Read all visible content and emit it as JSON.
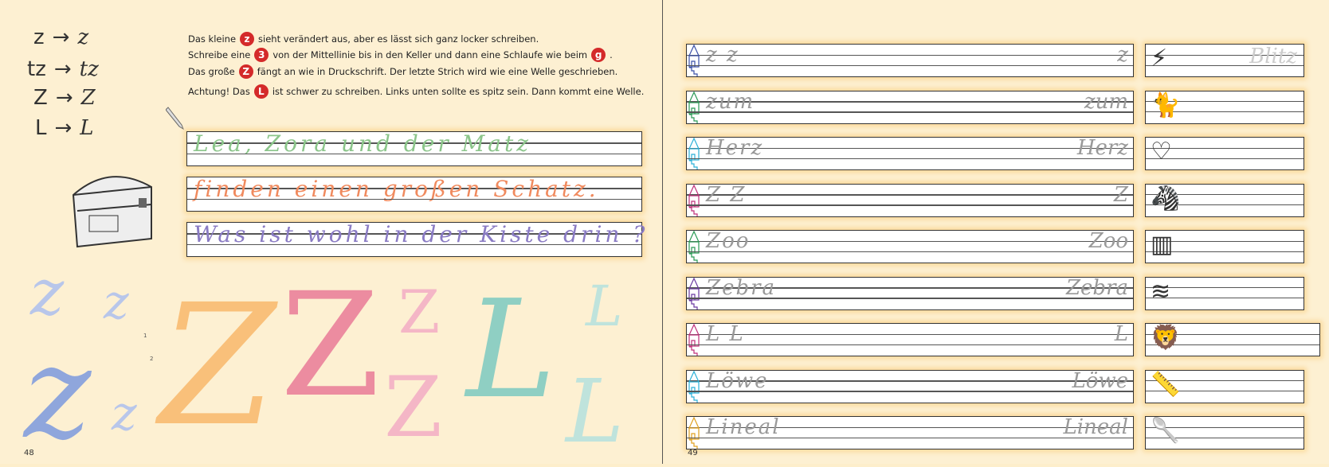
{
  "left_page": {
    "page_number": "48",
    "letter_pairs": [
      {
        "print": "z",
        "cursive": "z"
      },
      {
        "print": "tz",
        "cursive": "tz"
      },
      {
        "print": "Z",
        "cursive": "Z"
      },
      {
        "print": "L",
        "cursive": "L"
      }
    ],
    "arrow": "→",
    "instructions": [
      {
        "before": "Das kleine",
        "badge": "z",
        "after": "sieht verändert aus, aber es lässt sich ganz locker schreiben."
      },
      {
        "before": "Schreibe eine",
        "badge": "3",
        "after": "von der Mittellinie bis in den Keller und dann eine Schlaufe wie beim",
        "badge2": "g",
        "tail": "."
      },
      {
        "before": "Das  große",
        "badge": "Z",
        "after": "fängt an wie in Druckschrift. Der letzte Strich wird wie eine Welle geschrieben."
      },
      {
        "before": "Achtung! Das",
        "badge": "L",
        "after": "ist schwer zu schreiben. Links unten sollte es spitz sein. Dann kommt eine Welle."
      }
    ],
    "sentences": [
      {
        "text": "Lea, Zora und der Matz",
        "color": "#8bc58a"
      },
      {
        "text": "finden einen großen Schatz.",
        "color": "#f08a5e"
      },
      {
        "text": "Was ist wohl in der Kiste drin ?",
        "color": "#8a7bc4"
      }
    ],
    "big_letters": [
      {
        "glyph": "z",
        "color": "#9fb3e0"
      },
      {
        "glyph": "z",
        "color": "#9fb3e0"
      },
      {
        "glyph": "z",
        "color": "#8fa6dc"
      },
      {
        "glyph": "z",
        "color": "#9fb3e0"
      },
      {
        "glyph": "Z",
        "color": "#f9c07a"
      },
      {
        "glyph": "Z",
        "color": "#ec8ca0"
      },
      {
        "glyph": "Z",
        "color": "#f4b6c6"
      },
      {
        "glyph": "Z",
        "color": "#f4b6c6"
      },
      {
        "glyph": "L",
        "color": "#8fcfc3"
      },
      {
        "glyph": "L",
        "color": "#bfe3dc"
      },
      {
        "glyph": "L",
        "color": "#bfe3dc"
      }
    ],
    "stroke_numbers": [
      "1",
      "2"
    ],
    "colors": {
      "badge": "#d42a2a",
      "background": "#fdf0d2"
    }
  },
  "right_page": {
    "page_number": "49",
    "rows": [
      {
        "left": "z z",
        "right": "z",
        "house_color": "#3a4fa8",
        "picture": "lightning-icon",
        "picture_word": "Blitz"
      },
      {
        "left": "zum",
        "right": "zum",
        "house_color": "#2a9a55",
        "picture": "cat-icon"
      },
      {
        "left": "Herz",
        "right": "Herz",
        "house_color": "#2bb0d8",
        "picture": "heart-icon"
      },
      {
        "left": "Z Z",
        "right": "Z",
        "house_color": "#c0307a",
        "picture": "zebra-icon"
      },
      {
        "left": "Zoo",
        "right": "Zoo",
        "house_color": "#2a9a55",
        "picture": "fence-icon"
      },
      {
        "left": "Zebra",
        "right": "Zebra",
        "house_color": "#6a3aa0",
        "picture": "braid-icon"
      },
      {
        "left": "L L",
        "right": "L",
        "house_color": "#c0307a",
        "picture": "lion-icon"
      },
      {
        "left": "Löwe",
        "right": "Löwe",
        "house_color": "#2bb0d8",
        "picture": "ruler-icon"
      },
      {
        "left": "Lineal",
        "right": "Lineal",
        "house_color": "#e0a020",
        "picture": "spoon-icon"
      }
    ]
  }
}
